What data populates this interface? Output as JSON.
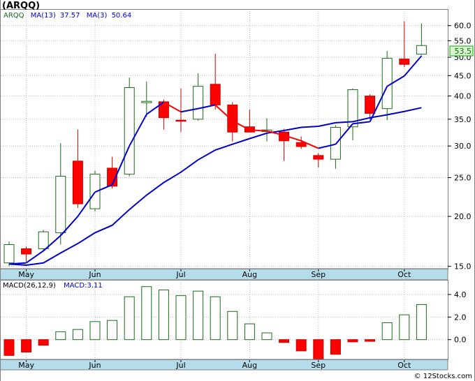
{
  "header": {
    "title": "(ARQQ)"
  },
  "legend": {
    "symbol": "ARQQ",
    "ma13_label": "MA(13)",
    "ma13_value": "37.57",
    "ma3_label": "MA(3)",
    "ma3_value": "50.64",
    "macd_label": "MACD(26,12,9)",
    "macd_value_label": "MACD:3.11"
  },
  "last_price_badge": "53.5",
  "credit": "© 12Stocks.com",
  "colors": {
    "up_candle": "#1a6b1a",
    "down_candle": "#ff0000",
    "ma_fast": "#ff0000",
    "ma_fast_up": "#0000cc",
    "ma_slow": "#0000cc",
    "macd_bar": "#1a6b1a",
    "macd_neg_fill": "#ff0000",
    "axis_band": "#b4dceb",
    "grid": "#bbbbbb",
    "badge_fill": "#d8f5d0",
    "badge_border": "#00aa00",
    "badge_text": "#007700"
  },
  "chart_data": [
    {
      "type": "candlestick",
      "title": "(ARQQ)",
      "yscale": "log",
      "ylim": [
        14.8,
        66
      ],
      "y_ticks": [
        "15.0",
        "20.0",
        "25.0",
        "30.0",
        "35.0",
        "40.0",
        "45.0",
        "50.0",
        "55.0",
        "60.0"
      ],
      "x_month_labels": [
        "May",
        "Jun",
        "Jul",
        "Aug",
        "Sep",
        "Oct"
      ],
      "grid": true,
      "candles": [
        {
          "o": 15.3,
          "h": 17.3,
          "l": 15.0,
          "c": 17.0
        },
        {
          "o": 16.6,
          "h": 16.8,
          "l": 15.4,
          "c": 16.1
        },
        {
          "o": 16.6,
          "h": 18.5,
          "l": 16.4,
          "c": 18.3
        },
        {
          "o": 18.2,
          "h": 30.5,
          "l": 17.0,
          "c": 25.2
        },
        {
          "o": 27.5,
          "h": 33.0,
          "l": 21.0,
          "c": 21.5
        },
        {
          "o": 20.9,
          "h": 26.0,
          "l": 20.6,
          "c": 25.5
        },
        {
          "o": 26.4,
          "h": 28.2,
          "l": 23.5,
          "c": 23.8
        },
        {
          "o": 25.5,
          "h": 44.5,
          "l": 25.2,
          "c": 42.0
        },
        {
          "o": 38.5,
          "h": 43.5,
          "l": 35.5,
          "c": 38.8
        },
        {
          "o": 38.7,
          "h": 39.2,
          "l": 33.0,
          "c": 35.3
        },
        {
          "o": 34.8,
          "h": 41.8,
          "l": 32.5,
          "c": 34.6
        },
        {
          "o": 35.0,
          "h": 45.6,
          "l": 34.7,
          "c": 42.3
        },
        {
          "o": 42.8,
          "h": 51.0,
          "l": 37.0,
          "c": 38.0
        },
        {
          "o": 38.0,
          "h": 38.6,
          "l": 30.8,
          "c": 32.5
        },
        {
          "o": 33.5,
          "h": 37.0,
          "l": 32.6,
          "c": 32.5
        },
        {
          "o": 32.6,
          "h": 35.2,
          "l": 30.8,
          "c": 32.9
        },
        {
          "o": 32.5,
          "h": 33.1,
          "l": 27.5,
          "c": 30.9
        },
        {
          "o": 30.6,
          "h": 31.7,
          "l": 29.5,
          "c": 29.9
        },
        {
          "o": 28.4,
          "h": 28.8,
          "l": 26.5,
          "c": 27.8
        },
        {
          "o": 27.8,
          "h": 33.8,
          "l": 26.3,
          "c": 33.4
        },
        {
          "o": 33.5,
          "h": 41.8,
          "l": 31.0,
          "c": 41.5
        },
        {
          "o": 40.0,
          "h": 40.4,
          "l": 35.0,
          "c": 36.2
        },
        {
          "o": 37.2,
          "h": 51.9,
          "l": 34.8,
          "c": 49.7
        },
        {
          "o": 49.5,
          "h": 61.5,
          "l": 47.3,
          "c": 48.0
        },
        {
          "o": 50.9,
          "h": 60.8,
          "l": 50.6,
          "c": 53.5
        }
      ],
      "ma_fast": [
        15.2,
        15.3,
        16.4,
        17.9,
        20.0,
        23.0,
        24.0,
        30.0,
        36.0,
        38.6,
        36.5,
        37.2,
        38.0,
        34.7,
        32.9,
        32.7,
        31.9,
        30.9,
        29.6,
        30.3,
        34.1,
        34.5,
        42.3,
        44.9,
        50.4
      ],
      "ma_slow": [
        15.2,
        15.1,
        15.3,
        16.2,
        17.1,
        18.2,
        19.0,
        20.8,
        22.6,
        24.3,
        25.8,
        27.7,
        29.3,
        30.3,
        31.3,
        32.3,
        32.8,
        33.4,
        33.6,
        34.3,
        34.5,
        35.3,
        35.9,
        36.6,
        37.4
      ]
    },
    {
      "type": "bar",
      "title": "MACD(26,12,9)",
      "ylim": [
        -1.75,
        5.3
      ],
      "y_ticks": [
        "0.0",
        "2.0",
        "4.0"
      ],
      "x_month_labels": [
        "May",
        "Jun",
        "Jul",
        "Aug",
        "Sep",
        "Oct"
      ],
      "values": [
        -1.4,
        -1.1,
        -0.5,
        0.7,
        0.9,
        1.6,
        1.7,
        3.8,
        4.7,
        4.4,
        3.9,
        4.3,
        3.8,
        2.5,
        1.4,
        0.6,
        -0.25,
        -1.0,
        -1.7,
        -1.3,
        -0.2,
        -0.15,
        1.5,
        2.2,
        3.11
      ]
    }
  ]
}
